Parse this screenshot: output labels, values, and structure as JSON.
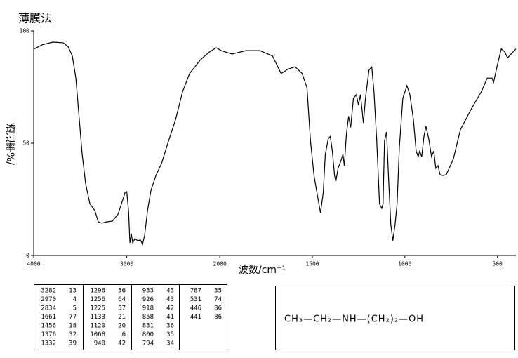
{
  "chart_data": {
    "type": "line",
    "title": "薄膜法",
    "x_label": "波数/cm⁻¹",
    "y_label": "透过率%/",
    "x_scale_change": 2000,
    "xlim": [
      4000,
      400
    ],
    "ylim": [
      0,
      100
    ],
    "xticks": [
      4000,
      3000,
      2000,
      1500,
      1000,
      500
    ],
    "yticks": [
      0,
      50,
      100
    ],
    "color": "#000000",
    "x": [
      4000,
      3909,
      3796,
      3683,
      3630,
      3585,
      3547,
      3517,
      3479,
      3442,
      3396,
      3343,
      3306,
      3268,
      3215,
      3155,
      3094,
      3057,
      3019,
      3000,
      2981,
      2966,
      2951,
      2936,
      2913,
      2883,
      2853,
      2830,
      2808,
      2777,
      2740,
      2687,
      2626,
      2551,
      2475,
      2400,
      2325,
      2211,
      2113,
      2038,
      1992,
      1935,
      1859,
      1783,
      1715,
      1669,
      1631,
      1593,
      1555,
      1529,
      1510,
      1491,
      1471,
      1456,
      1441,
      1430,
      1414,
      1403,
      1392,
      1380,
      1373,
      1361,
      1346,
      1335,
      1327,
      1316,
      1304,
      1293,
      1278,
      1262,
      1251,
      1240,
      1224,
      1213,
      1194,
      1179,
      1167,
      1152,
      1137,
      1125,
      1118,
      1110,
      1099,
      1087,
      1076,
      1065,
      1053,
      1042,
      1030,
      1011,
      989,
      973,
      954,
      939,
      928,
      920,
      909,
      897,
      886,
      871,
      856,
      844,
      833,
      821,
      810,
      795,
      776,
      738,
      700,
      643,
      586,
      555,
      529,
      521,
      498,
      479,
      460,
      445,
      426,
      400
    ],
    "values": [
      91.9,
      93.8,
      95,
      94.7,
      93,
      88.8,
      79,
      64,
      45,
      32,
      23,
      20,
      15,
      14.4,
      15,
      15.3,
      18.4,
      23,
      28,
      28.4,
      20,
      5.6,
      9.7,
      5.6,
      7.5,
      6.6,
      6.9,
      5,
      9,
      20,
      29,
      35.6,
      41,
      51,
      60.6,
      73,
      81,
      87,
      90.6,
      92.5,
      91.2,
      89.7,
      91.2,
      91.2,
      88.8,
      81,
      83,
      84,
      81,
      74.7,
      51,
      35.6,
      26,
      19,
      28,
      45,
      52,
      53,
      46.5,
      35.6,
      33,
      38.8,
      42,
      45,
      40,
      54,
      62,
      57,
      70,
      71.6,
      67,
      71.6,
      59,
      70,
      82.5,
      84,
      73,
      51,
      23,
      21,
      23,
      51,
      55,
      32.5,
      13.8,
      6.6,
      13.8,
      23,
      48,
      70,
      75.6,
      71.6,
      60.6,
      46.5,
      44,
      46.5,
      44,
      53,
      57.5,
      52,
      44,
      46.5,
      38.8,
      40,
      36,
      35.6,
      36,
      43,
      56,
      65,
      73,
      79,
      79,
      77,
      85.6,
      92,
      90.6,
      88,
      89.7,
      92
    ]
  },
  "peak_table": {
    "columns": [
      [
        [
          3282,
          13
        ],
        [
          2970,
          4
        ],
        [
          2834,
          5
        ],
        [
          1661,
          77
        ],
        [
          1456,
          18
        ],
        [
          1376,
          32
        ],
        [
          1332,
          39
        ]
      ],
      [
        [
          1296,
          56
        ],
        [
          1256,
          64
        ],
        [
          1225,
          57
        ],
        [
          1133,
          21
        ],
        [
          1120,
          20
        ],
        [
          1068,
          6
        ],
        [
          940,
          42
        ]
      ],
      [
        [
          933,
          43
        ],
        [
          926,
          43
        ],
        [
          918,
          42
        ],
        [
          858,
          41
        ],
        [
          831,
          36
        ],
        [
          800,
          35
        ],
        [
          794,
          34
        ]
      ],
      [
        [
          787,
          35
        ],
        [
          531,
          74
        ],
        [
          446,
          86
        ],
        [
          441,
          86
        ]
      ]
    ]
  },
  "formula": "CH₃—CH₂—NH—(CH₂)₂—OH"
}
